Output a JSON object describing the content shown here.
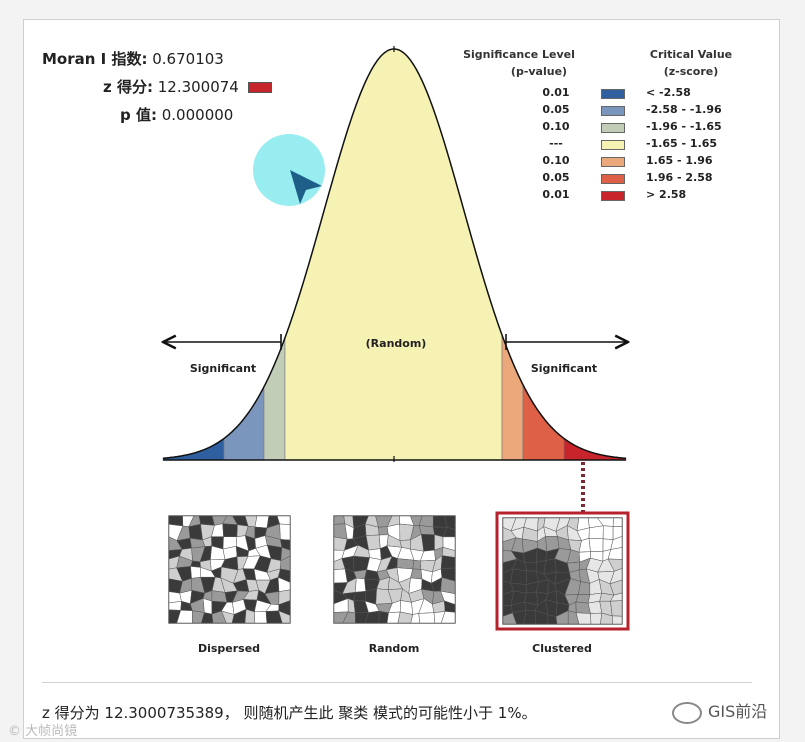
{
  "stats": {
    "moran_label": "Moran I 指数:",
    "moran_value": "0.670103",
    "z_label": "z 得分:",
    "z_value": "12.300074",
    "p_label": "p 值:",
    "p_value": "0.000000"
  },
  "legend": {
    "sig_header_1": "Significance Level",
    "sig_header_2": "(p-value)",
    "crit_header_1": "Critical Value",
    "crit_header_2": "(z-score)",
    "rows": [
      {
        "p": "0.01",
        "z": "< -2.58",
        "color": "#2f5f9e"
      },
      {
        "p": "0.05",
        "z": "-2.58 - -1.96",
        "color": "#7b96bd"
      },
      {
        "p": "0.10",
        "z": "-1.96 - -1.65",
        "color": "#c2cdb8"
      },
      {
        "p": "---",
        "z": "-1.65 - 1.65",
        "color": "#f5f2b3"
      },
      {
        "p": "0.10",
        "z": "1.65 - 1.96",
        "color": "#eba87a"
      },
      {
        "p": "0.05",
        "z": "1.96 - 2.58",
        "color": "#de6046"
      },
      {
        "p": "0.01",
        "z": "> 2.58",
        "color": "#c8242b"
      }
    ]
  },
  "curve": {
    "random_label": "(Random)",
    "sig_left": "Significant",
    "sig_right": "Significant"
  },
  "patterns": {
    "dispersed": "Dispersed",
    "random": "Random",
    "clustered": "Clustered"
  },
  "caption": "z 得分为 12.3000735389， 则随机产生此 聚类 模式的可能性小于 1%。",
  "brand": "GIS前沿",
  "watermark": "大帧尚镜"
}
